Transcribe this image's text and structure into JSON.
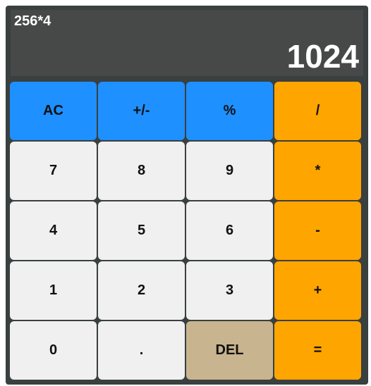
{
  "display": {
    "expression": "256*4",
    "result": "1024"
  },
  "keys": {
    "ac": "AC",
    "sign": "+/-",
    "percent": "%",
    "divide": "/",
    "seven": "7",
    "eight": "8",
    "nine": "9",
    "multiply": "*",
    "four": "4",
    "five": "5",
    "six": "6",
    "subtract": "-",
    "one": "1",
    "two": "2",
    "three": "3",
    "add": "+",
    "zero": "0",
    "decimal": ".",
    "delete": "DEL",
    "equals": "="
  },
  "colors": {
    "function_keys": "#1e90ff",
    "operator_keys": "#ffa500",
    "number_keys": "#f0f0f0",
    "delete_key": "#c8b48e",
    "body": "#3a3f3f",
    "display": "#474948"
  }
}
